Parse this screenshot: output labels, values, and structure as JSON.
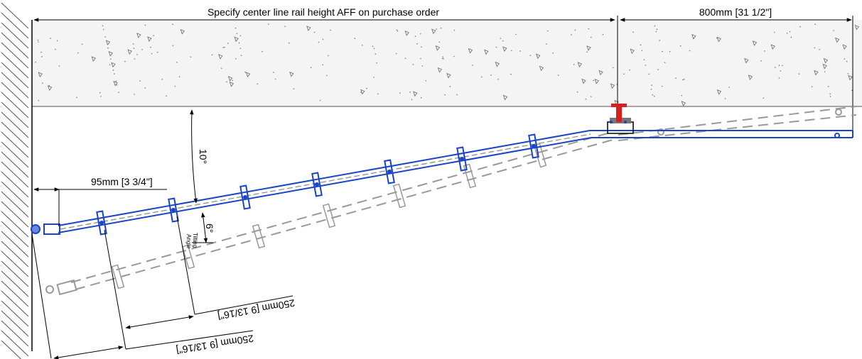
{
  "dimensions": {
    "top_span_label": "Specify center line rail height AFF on purchase order",
    "right_span_label": "800mm [31 1/2\"]",
    "offset_label": "95mm [3 3/4\"]",
    "spacing_label_1": "250mm [9 13/16\"]",
    "spacing_label_2": "250mm [9 13/16\"]"
  },
  "angles": {
    "ceiling_angle_label": "10°",
    "tilt_angle_label": "6°",
    "tilt_caption_line1": "Tilting",
    "tilt_caption_line2": "Angle"
  },
  "colors": {
    "rail": "#1a45c8",
    "ghost": "#999999",
    "bracket": "#d81f1f",
    "concrete": "#f2f2f2",
    "line": "#000000"
  }
}
